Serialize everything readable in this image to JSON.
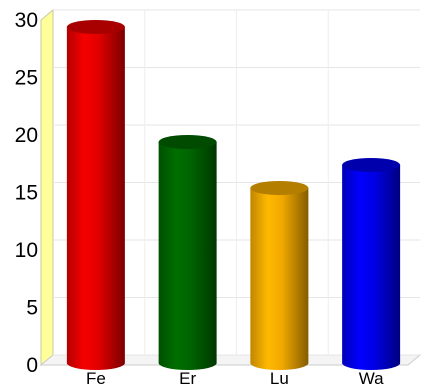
{
  "chart_data": {
    "type": "bar",
    "style": "3d-cylinder",
    "categories": [
      "Fe",
      "Er",
      "Lu",
      "Wa"
    ],
    "values": [
      30,
      20,
      16,
      18
    ],
    "bar_colors": [
      "#e00000",
      "#006400",
      "#f0a800",
      "#0000e6"
    ],
    "ylim": [
      0,
      30
    ],
    "yticks": [
      0,
      5,
      10,
      15,
      20,
      25,
      30
    ],
    "grid": true,
    "back_wall_color": "#ffff99",
    "title": "",
    "xlabel": "",
    "ylabel": ""
  }
}
